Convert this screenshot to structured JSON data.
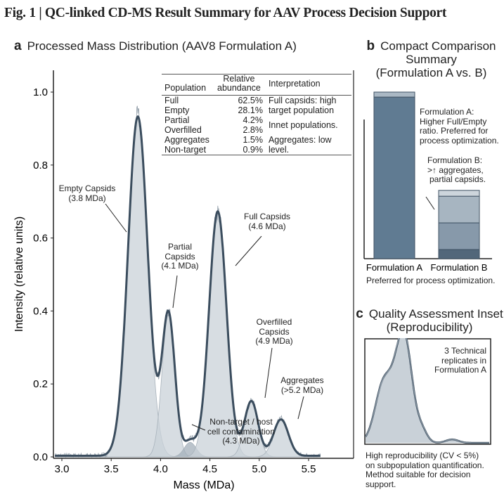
{
  "figure_title": "Fig. 1 | QC-linked CD-MS Result Summary for AAV Process Decision Support",
  "colors": {
    "fill": "#c6ced5",
    "curve": "#3b4d5e",
    "noise": "#9aa5af",
    "bar_dark": "#5f7a91",
    "bar_light": "#aab8c4"
  },
  "chart_data": [
    {
      "panel": "a",
      "type": "line",
      "title": "Processed Mass Distribution (AAV8 Formulation A)",
      "xlabel": "Mass (MDa)",
      "ylabel": "Intensity (relative units)",
      "xlim": [
        2.92,
        5.62
      ],
      "ylim": [
        0,
        1.05
      ],
      "xticks": [
        "3.0",
        "3.5",
        "4.0",
        "4.5",
        "5.0",
        "5.5"
      ],
      "yticks": [
        "0.0",
        "0.2",
        "0.4",
        "0.6",
        "0.8",
        "1.0"
      ],
      "grid": false,
      "peaks": [
        {
          "name": "Empty",
          "mass": 3.77,
          "intensity": 0.93
        },
        {
          "name": "Partial",
          "mass": 4.08,
          "intensity": 0.39
        },
        {
          "name": "Non-target",
          "mass": 4.3,
          "intensity": 0.04
        },
        {
          "name": "Full",
          "mass": 4.58,
          "intensity": 0.67
        },
        {
          "name": "Overfilled",
          "mass": 4.92,
          "intensity": 0.15
        },
        {
          "name": "Aggregates",
          "mass": 5.22,
          "intensity": 0.1
        }
      ],
      "annotations": {
        "empty": [
          "Empty Capsids",
          "(3.8 MDa)"
        ],
        "partial": [
          "Partial",
          "Capsids",
          "(4.1 MDa)"
        ],
        "full": [
          "Full Capsids",
          "(4.6 MDa)"
        ],
        "overfilled": [
          "Overfilled",
          "Capsids",
          "(4.9 MDa)"
        ],
        "aggregates": [
          "Aggregates",
          "(>5.2 MDa)"
        ],
        "nontarget": [
          "Non-target / host",
          "cell contamination",
          "(4.3 MDa)"
        ]
      },
      "table": {
        "headers": [
          "Population",
          "Relative abundance",
          "Interpretation"
        ],
        "rows": [
          {
            "population": "Full",
            "abundance": "62.5%"
          },
          {
            "population": "Empty",
            "abundance": "28.1%"
          },
          {
            "population": "Partial",
            "abundance": "4.2%"
          },
          {
            "population": "Overfilled",
            "abundance": "2.8%"
          },
          {
            "population": "Aggregates",
            "abundance": "1.5%"
          },
          {
            "population": "Non-target",
            "abundance": "0.9%"
          }
        ],
        "interpretations": [
          "Full capsids: high target population",
          "Innet populations.",
          "Aggregates: low level."
        ]
      }
    },
    {
      "panel": "b",
      "type": "bar",
      "stacked": true,
      "title": "Compact Comparison Summary (Formulation A vs. B)",
      "title_lines": [
        "Compact Comparison",
        "Summary",
        "(Formulation A vs. B)"
      ],
      "categories": [
        "Formulation A",
        "Formulation B"
      ],
      "stacks": [
        [
          0.97,
          0.03
        ],
        [
          0.055,
          0.16,
          0.16,
          0.035
        ]
      ],
      "stack_colors": [
        [
          "#607b92",
          "#aab8c4"
        ],
        [
          "#52677a",
          "#8799aa",
          "#a7b5c1",
          "#cdd5dc"
        ]
      ],
      "note_a": [
        "Formulation A:",
        "Higher Full/Empty",
        "ratio. Preferred for",
        "process optimization."
      ],
      "note_b": [
        "Formulation B:",
        ">↑ aggregates,",
        "partial capsids."
      ],
      "caption": "Preferred for process optimization."
    },
    {
      "panel": "c",
      "type": "line",
      "title_lines": [
        "Quality Assessment Inset",
        "(Reproducibility)"
      ],
      "legend_note": [
        "3 Technical",
        "replicates in",
        "Formulation A"
      ],
      "replicates": 3,
      "caption": [
        "High reproducibility (CV < 5%)",
        "on subpopulation quantification.",
        "Method suitable for decision",
        "support."
      ]
    }
  ]
}
